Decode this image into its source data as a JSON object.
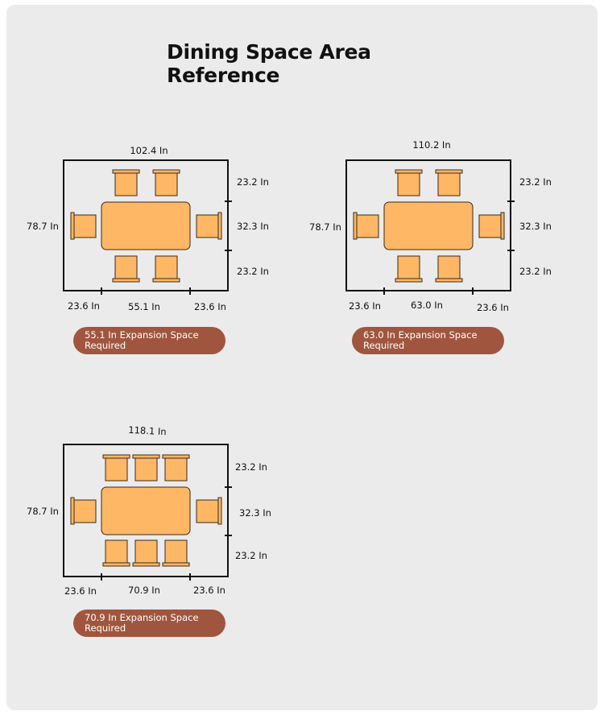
{
  "title_line1": "Dining Space Area",
  "title_line2": "Reference",
  "layouts": [
    {
      "width_label": "102.4 In",
      "height_label": "78.7 In",
      "depth_labels": [
        "23.2 In",
        "32.3 In",
        "23.2 In"
      ],
      "length_labels": [
        "23.6 In",
        "55.1 In",
        "23.6 In"
      ],
      "seats_per_side": 2,
      "note_line1": "55.1 In Expansion Space",
      "note_line2": "Required"
    },
    {
      "width_label": "110.2 In",
      "height_label": "78.7 In",
      "depth_labels": [
        "23.2 In",
        "32.3 In",
        "23.2 In"
      ],
      "length_labels": [
        "23.6 In",
        "63.0 In",
        "23.6 In"
      ],
      "seats_per_side": 2,
      "note_line1": "63.0 In Expansion Space",
      "note_line2": "Required"
    },
    {
      "width_label": "118.1 In",
      "height_label": "78.7 In",
      "depth_labels": [
        "23.2 In",
        "32.3 In",
        "23.2 In"
      ],
      "length_labels": [
        "23.6 In",
        "70.9 In",
        "23.6 In"
      ],
      "seats_per_side": 3,
      "note_line1": "70.9 In Expansion Space",
      "note_line2": "Required"
    }
  ],
  "colors": {
    "card_background": "#ebebeb",
    "furniture": "#fdb765",
    "note_pill": "#a0563e"
  }
}
